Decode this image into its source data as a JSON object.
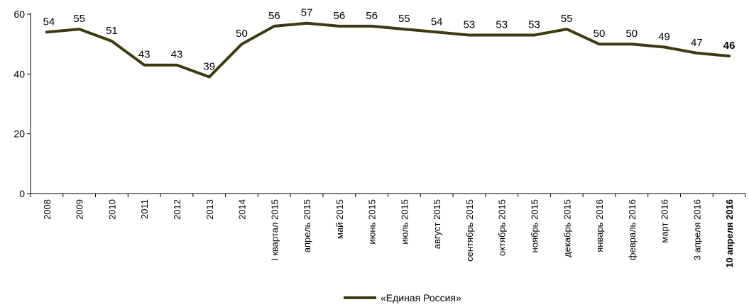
{
  "chart_data": {
    "type": "line",
    "categories": [
      "2008",
      "2009",
      "2010",
      "2011",
      "2012",
      "2013",
      "2014",
      "I квартал 2015",
      "апрель 2015",
      "май 2015",
      "июнь 2015",
      "июль 2015",
      "август 2015",
      "сентябрь 2015",
      "октябрь 2015",
      "ноябрь 2015",
      "декабрь 2015",
      "январь 2016",
      "февраль 2016",
      "март 2016",
      "3 апреля 2016",
      "10 апреля 2016"
    ],
    "series": [
      {
        "name": "«Единая Россия»",
        "values": [
          54,
          55,
          51,
          43,
          43,
          39,
          50,
          56,
          57,
          56,
          56,
          55,
          54,
          53,
          53,
          53,
          55,
          50,
          50,
          49,
          47,
          46
        ],
        "color": "#3d3a12"
      }
    ],
    "ylim": [
      0,
      60
    ],
    "yticks": [
      0,
      20,
      40,
      60
    ],
    "grid": false,
    "legend_position": "bottom-center",
    "highlighted_category": "10 апреля 2016"
  }
}
